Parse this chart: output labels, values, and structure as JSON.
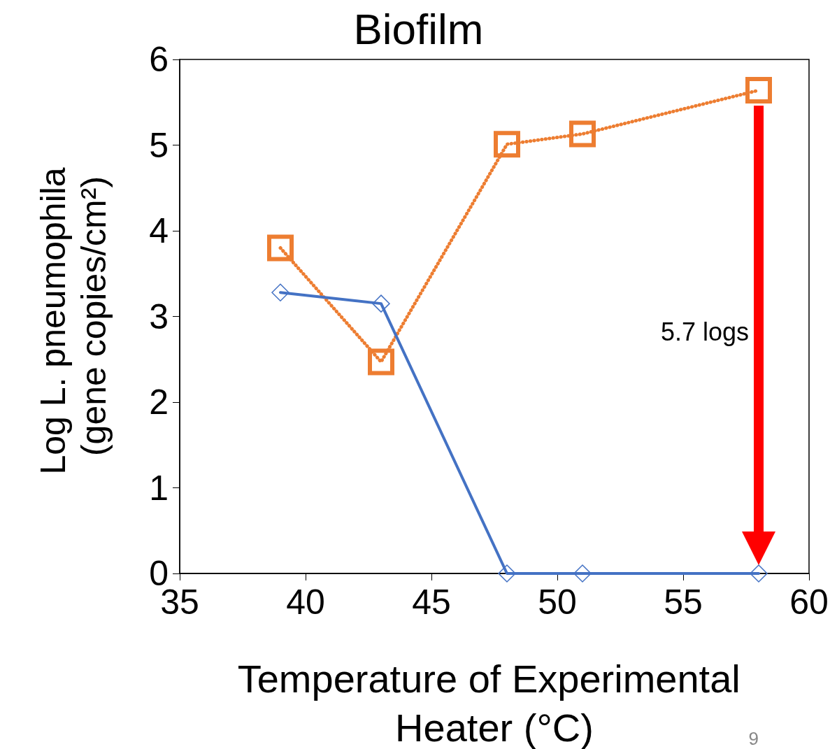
{
  "chart_data": {
    "type": "line",
    "title": "Biofilm",
    "xlabel": "Temperature of Experimental Heater (°C)",
    "ylabel": "Log L. pneumophila (gene copies/cm²)",
    "x": [
      39,
      43,
      48,
      51,
      58
    ],
    "series": [
      {
        "color": "#ed7d31",
        "values": [
          3.8,
          2.47,
          5.01,
          5.13,
          5.64
        ],
        "marker": "square",
        "line_style": "dotted"
      },
      {
        "color": "#4472c4",
        "values": [
          3.28,
          3.15,
          0,
          0,
          0
        ],
        "marker": "diamond",
        "line_style": "solid"
      }
    ],
    "xlim": [
      35,
      60
    ],
    "xticks": [
      35,
      40,
      45,
      50,
      55,
      60
    ],
    "ylim": [
      0,
      6
    ],
    "yticks": [
      0,
      1,
      2,
      3,
      4,
      5,
      6
    ],
    "grid": false,
    "annotations": [
      "5.7 logs",
      "9"
    ]
  }
}
